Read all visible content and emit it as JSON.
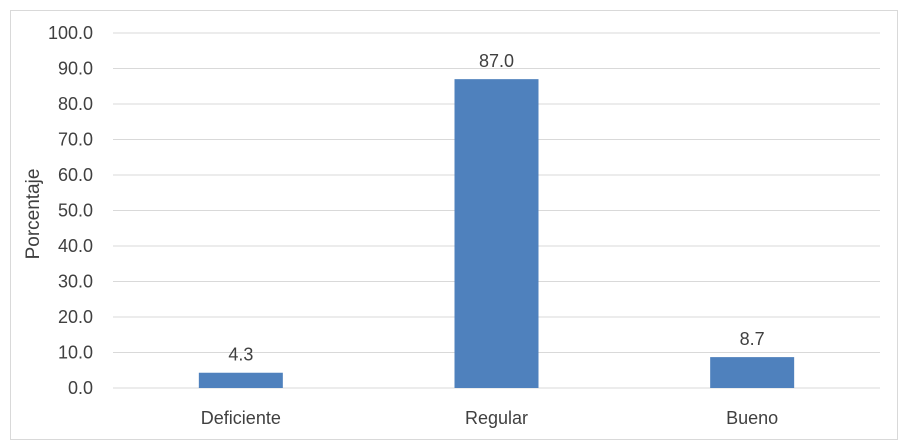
{
  "chart_data": {
    "type": "bar",
    "categories": [
      "Deficiente",
      "Regular",
      "Bueno"
    ],
    "values": [
      4.3,
      87.0,
      8.7
    ],
    "data_labels": [
      "4.3",
      "87.0",
      "8.7"
    ],
    "title": "",
    "xlabel": "",
    "ylabel": "Porcentaje",
    "ylim": [
      0,
      100
    ],
    "yticks": [
      0,
      10,
      20,
      30,
      40,
      50,
      60,
      70,
      80,
      90,
      100
    ],
    "ytick_labels": [
      "0.0",
      "10.0",
      "20.0",
      "30.0",
      "40.0",
      "50.0",
      "60.0",
      "70.0",
      "80.0",
      "90.0",
      "100.0"
    ],
    "grid": true,
    "legend": "none",
    "bar_color": "#4f81bd",
    "grid_color": "#d9d9d9"
  }
}
